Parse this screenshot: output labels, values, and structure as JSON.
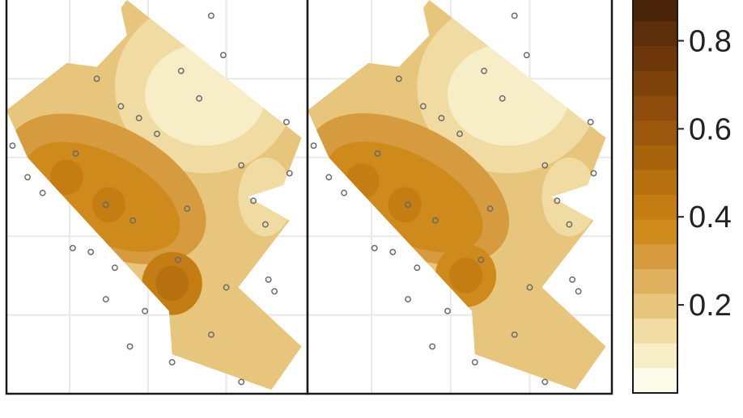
{
  "chart_data": {
    "type": "heatmap",
    "panels": [
      {
        "name": "",
        "sample_points": [
          [
            0.68,
            0.04
          ],
          [
            0.58,
            0.18
          ],
          [
            0.72,
            0.14
          ],
          [
            0.3,
            0.2
          ],
          [
            0.38,
            0.27
          ],
          [
            0.44,
            0.3
          ],
          [
            0.5,
            0.34
          ],
          [
            0.64,
            0.25
          ],
          [
            0.93,
            0.31
          ],
          [
            0.02,
            0.37
          ],
          [
            0.23,
            0.39
          ],
          [
            0.78,
            0.42
          ],
          [
            0.94,
            0.44
          ],
          [
            0.82,
            0.51
          ],
          [
            0.07,
            0.45
          ],
          [
            0.12,
            0.49
          ],
          [
            0.33,
            0.52
          ],
          [
            0.42,
            0.56
          ],
          [
            0.6,
            0.53
          ],
          [
            0.86,
            0.57
          ],
          [
            0.22,
            0.63
          ],
          [
            0.28,
            0.64
          ],
          [
            0.36,
            0.68
          ],
          [
            0.57,
            0.66
          ],
          [
            0.87,
            0.71
          ],
          [
            0.33,
            0.76
          ],
          [
            0.46,
            0.79
          ],
          [
            0.73,
            0.73
          ],
          [
            0.68,
            0.85
          ],
          [
            0.41,
            0.88
          ],
          [
            0.55,
            0.92
          ],
          [
            0.78,
            0.97
          ],
          [
            0.89,
            0.74
          ]
        ],
        "level_peaks": [
          [
            0.55,
            0.72,
            0.48
          ],
          [
            0.34,
            0.52,
            0.41
          ],
          [
            0.2,
            0.45,
            0.44
          ]
        ]
      },
      {
        "name": "",
        "sample_points": [
          [
            0.68,
            0.04
          ],
          [
            0.58,
            0.18
          ],
          [
            0.72,
            0.14
          ],
          [
            0.3,
            0.2
          ],
          [
            0.38,
            0.27
          ],
          [
            0.44,
            0.3
          ],
          [
            0.5,
            0.34
          ],
          [
            0.64,
            0.25
          ],
          [
            0.93,
            0.31
          ],
          [
            0.02,
            0.37
          ],
          [
            0.23,
            0.39
          ],
          [
            0.78,
            0.42
          ],
          [
            0.94,
            0.44
          ],
          [
            0.82,
            0.51
          ],
          [
            0.07,
            0.45
          ],
          [
            0.12,
            0.49
          ],
          [
            0.33,
            0.52
          ],
          [
            0.42,
            0.56
          ],
          [
            0.6,
            0.53
          ],
          [
            0.86,
            0.57
          ],
          [
            0.22,
            0.63
          ],
          [
            0.28,
            0.64
          ],
          [
            0.36,
            0.68
          ],
          [
            0.57,
            0.66
          ],
          [
            0.87,
            0.71
          ],
          [
            0.33,
            0.76
          ],
          [
            0.46,
            0.79
          ],
          [
            0.73,
            0.73
          ],
          [
            0.68,
            0.85
          ],
          [
            0.41,
            0.88
          ],
          [
            0.55,
            0.92
          ],
          [
            0.78,
            0.97
          ],
          [
            0.89,
            0.74
          ]
        ],
        "level_peaks": [
          [
            0.52,
            0.7,
            0.44
          ],
          [
            0.32,
            0.52,
            0.39
          ],
          [
            0.18,
            0.46,
            0.42
          ]
        ]
      }
    ],
    "legend": {
      "range": [
        0.0,
        0.9
      ],
      "steps": 16,
      "ticks": [
        {
          "value": 0.8,
          "label": "0.8"
        },
        {
          "value": 0.6,
          "label": "0.6"
        },
        {
          "value": 0.4,
          "label": "0.4"
        },
        {
          "value": 0.2,
          "label": "0.2"
        }
      ],
      "placement": "right",
      "colors": [
        "#fdfbea",
        "#f7edc6",
        "#f0dba2",
        "#e8c57d",
        "#dfb05e",
        "#d69b3f",
        "#cf8a1c",
        "#c47d12",
        "#b6700f",
        "#a8640d",
        "#9b570c",
        "#8e4c0c",
        "#7e420b",
        "#6f380a",
        "#5c2e0a",
        "#4a2409"
      ]
    },
    "grid": true
  }
}
